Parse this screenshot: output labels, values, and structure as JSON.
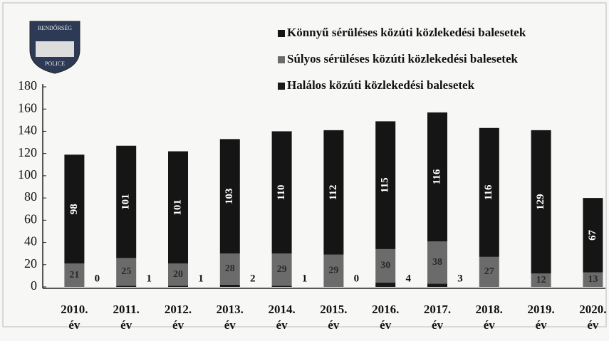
{
  "logo": {
    "top": "RENDŐRSÉG",
    "bottom": "POLICE"
  },
  "chart_data": {
    "type": "stacked_bar",
    "categories": [
      "2010. év",
      "2011. év",
      "2012. év",
      "2013. év",
      "2014. év",
      "2015. év",
      "2016. év",
      "2017. év",
      "2018. év",
      "2019. év",
      "2020. év"
    ],
    "series": [
      {
        "name": "Halálos közúti közlekedési balesetek",
        "color": "#1a1a1a",
        "values": [
          0,
          1,
          1,
          2,
          1,
          0,
          4,
          3,
          null,
          null,
          null
        ]
      },
      {
        "name": "Súlyos sérüléses közúti közlekedési balesetek",
        "color": "#6b6b6b",
        "values": [
          21,
          25,
          20,
          28,
          29,
          29,
          30,
          38,
          27,
          12,
          13
        ]
      },
      {
        "name": "Könnyű sérüléses közúti közlekedési balesetek",
        "color": "#151515",
        "values": [
          98,
          101,
          101,
          103,
          110,
          112,
          115,
          116,
          116,
          129,
          67
        ]
      }
    ],
    "legend_order": [
      2,
      1,
      0
    ],
    "ylim": [
      0,
      180
    ],
    "yticks": [
      0,
      20,
      40,
      60,
      80,
      100,
      120,
      140,
      160,
      180
    ]
  }
}
